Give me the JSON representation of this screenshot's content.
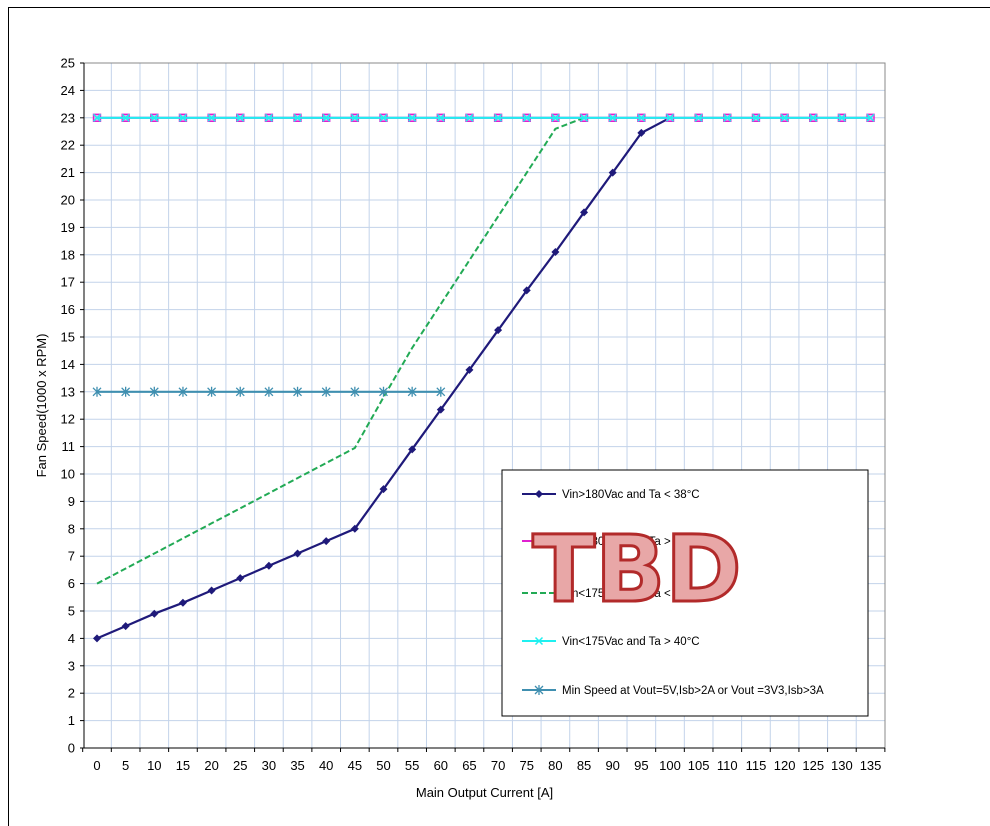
{
  "stamp_text": "TBD",
  "chart_data": {
    "type": "line",
    "title": "",
    "xlabel": "Main Output Current  [A]",
    "ylabel": "Fan Speed(1000  x RPM)",
    "xlim": [
      0,
      135
    ],
    "ylim": [
      0,
      25
    ],
    "x_ticks": [
      0,
      5,
      10,
      15,
      20,
      25,
      30,
      35,
      40,
      45,
      50,
      55,
      60,
      65,
      70,
      75,
      80,
      85,
      90,
      95,
      100,
      105,
      110,
      115,
      120,
      125,
      130,
      135
    ],
    "y_ticks": [
      0,
      1,
      2,
      3,
      4,
      5,
      6,
      7,
      8,
      9,
      10,
      11,
      12,
      13,
      14,
      15,
      16,
      17,
      18,
      19,
      20,
      21,
      22,
      23,
      24,
      25
    ],
    "grid": true,
    "legend_position": "bottom-right",
    "series": [
      {
        "name": "Vin>180Vac and Ta < 38°C",
        "color": "#1f1a7a",
        "dash": "solid",
        "marker": "diamond",
        "x": [
          0,
          5,
          10,
          15,
          20,
          25,
          30,
          35,
          40,
          45,
          50,
          55,
          60,
          65,
          70,
          75,
          80,
          85,
          90,
          95,
          100
        ],
        "y": [
          4,
          4.45,
          4.9,
          5.3,
          5.75,
          6.2,
          6.65,
          7.1,
          7.55,
          8,
          9.45,
          10.9,
          12.35,
          13.8,
          15.25,
          16.7,
          18.1,
          19.55,
          21,
          22.45,
          23
        ]
      },
      {
        "name": "Vin>180Vac and Ta > 40°C",
        "color": "#e020d0",
        "dash": "solid",
        "marker": "square",
        "x": [
          0,
          5,
          10,
          15,
          20,
          25,
          30,
          35,
          40,
          45,
          50,
          55,
          60,
          65,
          70,
          75,
          80,
          85,
          90,
          95,
          100,
          105,
          110,
          115,
          120,
          125,
          130,
          135
        ],
        "y": [
          23,
          23,
          23,
          23,
          23,
          23,
          23,
          23,
          23,
          23,
          23,
          23,
          23,
          23,
          23,
          23,
          23,
          23,
          23,
          23,
          23,
          23,
          23,
          23,
          23,
          23,
          23,
          23
        ]
      },
      {
        "name": "Vin<175Vac and Ta < 38°C",
        "color": "#22aa55",
        "dash": "dashed",
        "marker": "none",
        "x": [
          0,
          5,
          10,
          15,
          20,
          25,
          30,
          35,
          40,
          45,
          50,
          55,
          60,
          65,
          70,
          75,
          80,
          85
        ],
        "y": [
          6,
          6.55,
          7.1,
          7.65,
          8.2,
          8.75,
          9.3,
          9.85,
          10.4,
          10.95,
          12.8,
          14.6,
          16.2,
          17.8,
          19.4,
          21,
          22.6,
          23
        ]
      },
      {
        "name": "Vin<175Vac and Ta > 40°C",
        "color": "#1ff0f0",
        "dash": "solid",
        "marker": "x",
        "x": [
          0,
          5,
          10,
          15,
          20,
          25,
          30,
          35,
          40,
          45,
          50,
          55,
          60,
          65,
          70,
          75,
          80,
          85,
          90,
          95,
          100,
          105,
          110,
          115,
          120,
          125,
          130,
          135
        ],
        "y": [
          23,
          23,
          23,
          23,
          23,
          23,
          23,
          23,
          23,
          23,
          23,
          23,
          23,
          23,
          23,
          23,
          23,
          23,
          23,
          23,
          23,
          23,
          23,
          23,
          23,
          23,
          23,
          23
        ]
      },
      {
        "name": "Min Speed at Vout=5V,Isb>2A or Vout =3V3,Isb>3A",
        "color": "#3f8fb0",
        "dash": "solid",
        "marker": "star",
        "x": [
          0,
          5,
          10,
          15,
          20,
          25,
          30,
          35,
          40,
          45,
          50,
          55,
          60
        ],
        "y": [
          13,
          13,
          13,
          13,
          13,
          13,
          13,
          13,
          13,
          13,
          13,
          13,
          13
        ]
      }
    ]
  }
}
